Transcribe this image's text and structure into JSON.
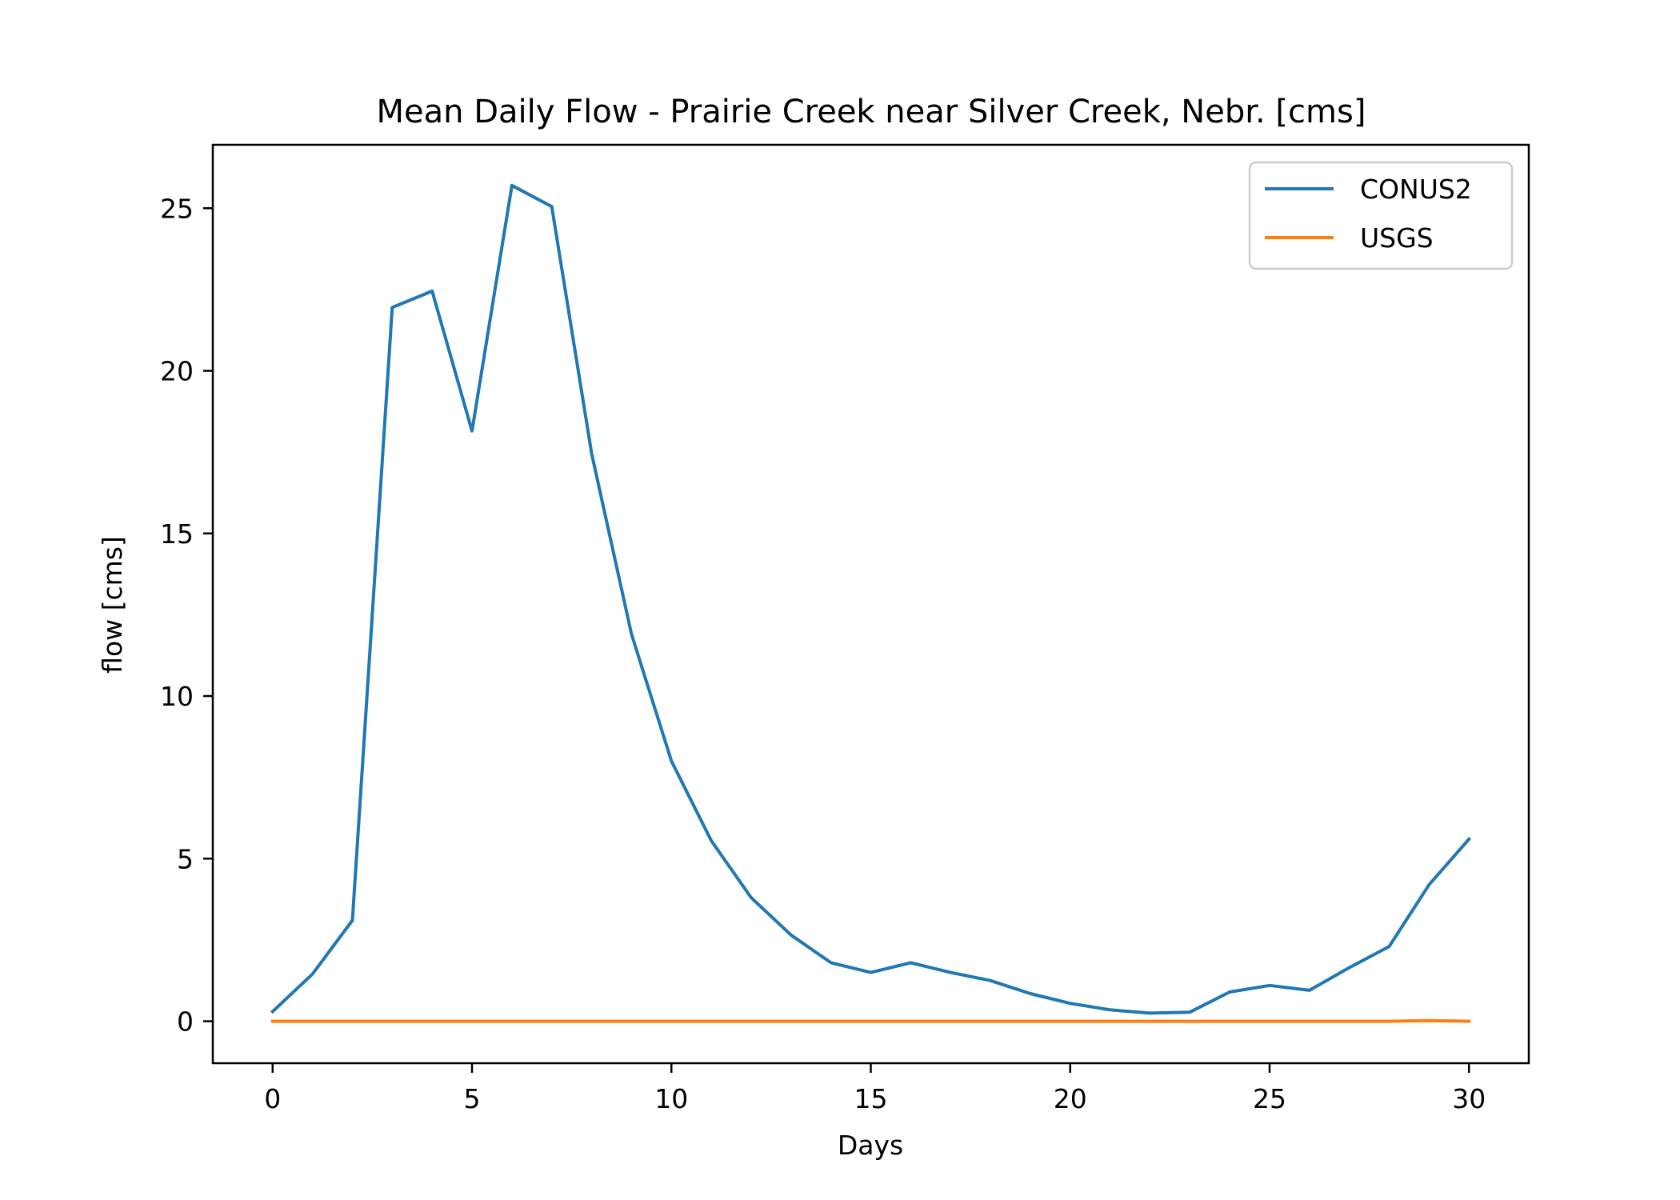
{
  "chart_data": {
    "type": "line",
    "title": "Mean Daily Flow - Prairie Creek near Silver Creek, Nebr. [cms]",
    "xlabel": "Days",
    "ylabel": "flow [cms]",
    "xlim": [
      -1.5,
      31.5
    ],
    "ylim": [
      -1.29,
      26.95
    ],
    "xticks": [
      0,
      5,
      10,
      15,
      20,
      25,
      30
    ],
    "yticks": [
      0,
      5,
      10,
      15,
      20,
      25
    ],
    "grid": false,
    "legend_position": "top-right",
    "x": [
      0,
      1,
      2,
      3,
      4,
      5,
      6,
      7,
      8,
      9,
      10,
      11,
      12,
      13,
      14,
      15,
      16,
      17,
      18,
      19,
      20,
      21,
      22,
      23,
      24,
      25,
      26,
      27,
      28,
      29,
      30
    ],
    "series": [
      {
        "name": "CONUS2",
        "color": "#1f77b4",
        "values": [
          0.3,
          1.45,
          3.1,
          21.95,
          22.45,
          18.15,
          25.7,
          25.05,
          17.45,
          11.9,
          8.0,
          5.55,
          3.8,
          2.65,
          1.8,
          1.5,
          1.8,
          1.5,
          1.25,
          0.85,
          0.55,
          0.35,
          0.25,
          0.28,
          0.9,
          1.1,
          0.95,
          1.65,
          2.3,
          4.2,
          5.6
        ]
      },
      {
        "name": "USGS",
        "color": "#ff7f0e",
        "values": [
          0,
          0,
          0,
          0,
          0,
          0,
          0,
          0,
          0,
          0,
          0,
          0,
          0,
          0,
          0,
          0,
          0,
          0,
          0,
          0,
          0,
          0,
          0,
          0,
          0,
          0,
          0,
          0,
          0,
          0.02,
          0
        ]
      }
    ]
  }
}
